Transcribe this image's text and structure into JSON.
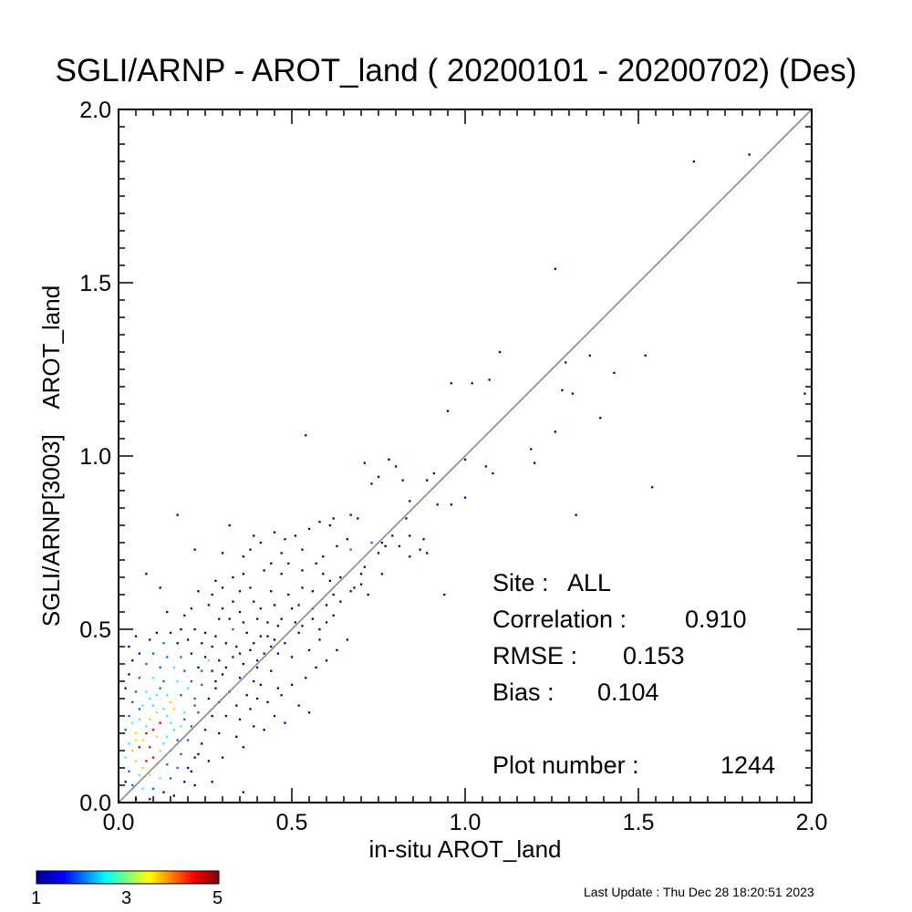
{
  "title": "SGLI/ARNP - AROT_land ( 20200101 - 20200702) (Des)",
  "footer": {
    "last_update": "Last Update : Thu Dec 28 18:20:51 2023"
  },
  "stats": {
    "site_label": "Site :",
    "site_value": "ALL",
    "correlation_label": "Correlation :",
    "correlation_value": "0.910",
    "rmse_label": "RMSE :",
    "rmse_value": "0.153",
    "bias_label": "Bias :",
    "bias_value": "0.104",
    "plot_number_label": "Plot number :",
    "plot_number_value": "1244"
  },
  "colorbar": {
    "min_label": "1",
    "mid_label": "3",
    "max_label": "5",
    "stops": [
      "#00008f",
      "#0000ff",
      "#00ffff",
      "#ffff00",
      "#ff0000",
      "#800000"
    ]
  },
  "chart_data": {
    "type": "heatmap",
    "title": "SGLI/ARNP - AROT_land ( 20200101 - 20200702) (Des)",
    "xlabel": "in-situ AROT_land",
    "ylabel": "SGLI/ARNP[3003]    AROT_land",
    "xlim": [
      0.0,
      2.0
    ],
    "ylim": [
      0.0,
      2.0
    ],
    "x_ticks": [
      "0.0",
      "0.5",
      "1.0",
      "1.5",
      "2.0"
    ],
    "y_ticks": [
      "0.0",
      "0.5",
      "1.0",
      "1.5",
      "2.0"
    ],
    "one_to_one_line": true,
    "grid": false,
    "count_range": [
      1,
      5
    ],
    "bin_size": 0.01,
    "points": [
      [
        1.82,
        1.87,
        1
      ],
      [
        1.66,
        1.85,
        1
      ],
      [
        1.26,
        1.54,
        1
      ],
      [
        1.1,
        1.3,
        1
      ],
      [
        1.36,
        1.29,
        1
      ],
      [
        1.52,
        1.29,
        1
      ],
      [
        1.29,
        1.27,
        1
      ],
      [
        1.43,
        1.24,
        1
      ],
      [
        1.07,
        1.22,
        1
      ],
      [
        0.96,
        1.21,
        1
      ],
      [
        1.02,
        1.21,
        1
      ],
      [
        1.28,
        1.19,
        1
      ],
      [
        1.31,
        1.18,
        1
      ],
      [
        1.98,
        1.18,
        1
      ],
      [
        0.95,
        1.13,
        1
      ],
      [
        1.39,
        1.11,
        1
      ],
      [
        1.26,
        1.07,
        1
      ],
      [
        0.54,
        1.06,
        1
      ],
      [
        1.19,
        1.02,
        1
      ],
      [
        1.0,
        0.99,
        1
      ],
      [
        0.78,
        0.99,
        1
      ],
      [
        0.71,
        0.98,
        1
      ],
      [
        0.8,
        0.97,
        1
      ],
      [
        1.06,
        0.97,
        1
      ],
      [
        1.2,
        0.98,
        1
      ],
      [
        0.91,
        0.95,
        1
      ],
      [
        1.08,
        0.95,
        1
      ],
      [
        0.75,
        0.94,
        1
      ],
      [
        0.82,
        0.93,
        1
      ],
      [
        0.73,
        0.92,
        1
      ],
      [
        0.89,
        0.93,
        1
      ],
      [
        1.54,
        0.91,
        1
      ],
      [
        0.96,
        0.86,
        1
      ],
      [
        1.0,
        0.88,
        1
      ],
      [
        0.84,
        0.87,
        1
      ],
      [
        0.92,
        0.86,
        1
      ],
      [
        0.67,
        0.83,
        1
      ],
      [
        0.62,
        0.82,
        1
      ],
      [
        0.58,
        0.81,
        1
      ],
      [
        1.32,
        0.83,
        1
      ],
      [
        0.17,
        0.83,
        1
      ],
      [
        0.32,
        0.8,
        1
      ],
      [
        0.55,
        0.79,
        1
      ],
      [
        0.61,
        0.8,
        1
      ],
      [
        0.69,
        0.82,
        1
      ],
      [
        0.83,
        0.82,
        1
      ],
      [
        0.45,
        0.78,
        1
      ],
      [
        0.51,
        0.77,
        1
      ],
      [
        0.39,
        0.77,
        1
      ],
      [
        0.41,
        0.75,
        1
      ],
      [
        0.48,
        0.76,
        1
      ],
      [
        0.66,
        0.76,
        1
      ],
      [
        0.76,
        0.75,
        1
      ],
      [
        0.79,
        0.77,
        1
      ],
      [
        0.84,
        0.77,
        1
      ],
      [
        0.88,
        0.76,
        1
      ],
      [
        0.47,
        0.72,
        1
      ],
      [
        0.53,
        0.73,
        1
      ],
      [
        0.44,
        0.69,
        1
      ],
      [
        0.59,
        0.71,
        1
      ],
      [
        0.63,
        0.74,
        1
      ],
      [
        0.67,
        0.73,
        2
      ],
      [
        0.73,
        0.75,
        2
      ],
      [
        0.75,
        0.72,
        1
      ],
      [
        0.77,
        0.74,
        1
      ],
      [
        0.81,
        0.74,
        1
      ],
      [
        0.84,
        0.71,
        1
      ],
      [
        0.87,
        0.73,
        1
      ],
      [
        0.89,
        0.72,
        1
      ],
      [
        0.36,
        0.71,
        1
      ],
      [
        0.38,
        0.73,
        1
      ],
      [
        0.22,
        0.73,
        1
      ],
      [
        0.3,
        0.72,
        1
      ],
      [
        0.49,
        0.69,
        1
      ],
      [
        0.57,
        0.69,
        1
      ],
      [
        0.42,
        0.67,
        1
      ],
      [
        0.47,
        0.66,
        1
      ],
      [
        0.53,
        0.67,
        1
      ],
      [
        0.59,
        0.66,
        1
      ],
      [
        0.61,
        0.64,
        1
      ],
      [
        0.64,
        0.65,
        1
      ],
      [
        0.7,
        0.66,
        1
      ],
      [
        0.36,
        0.66,
        1
      ],
      [
        0.33,
        0.65,
        1
      ],
      [
        0.28,
        0.64,
        1
      ],
      [
        0.08,
        0.66,
        1
      ],
      [
        0.12,
        0.62,
        1
      ],
      [
        0.23,
        0.61,
        1
      ],
      [
        0.27,
        0.6,
        1
      ],
      [
        0.3,
        0.62,
        1
      ],
      [
        0.35,
        0.61,
        1
      ],
      [
        0.38,
        0.62,
        1
      ],
      [
        0.44,
        0.61,
        1
      ],
      [
        0.49,
        0.6,
        1
      ],
      [
        0.53,
        0.62,
        1
      ],
      [
        0.56,
        0.61,
        1
      ],
      [
        0.62,
        0.6,
        1
      ],
      [
        0.67,
        0.61,
        1
      ],
      [
        0.7,
        0.63,
        1
      ],
      [
        0.76,
        0.66,
        1
      ],
      [
        0.72,
        0.6,
        1
      ],
      [
        0.94,
        0.6,
        1
      ],
      [
        0.39,
        0.58,
        1
      ],
      [
        0.41,
        0.56,
        1
      ],
      [
        0.45,
        0.57,
        1
      ],
      [
        0.5,
        0.56,
        1
      ],
      [
        0.52,
        0.57,
        1
      ],
      [
        0.56,
        0.56,
        1
      ],
      [
        0.26,
        0.57,
        1
      ],
      [
        0.3,
        0.56,
        1
      ],
      [
        0.33,
        0.58,
        1
      ],
      [
        0.35,
        0.55,
        1
      ],
      [
        0.21,
        0.56,
        1
      ],
      [
        0.19,
        0.54,
        1
      ],
      [
        0.14,
        0.55,
        1
      ],
      [
        0.29,
        0.53,
        1
      ],
      [
        0.32,
        0.53,
        1
      ],
      [
        0.36,
        0.52,
        1
      ],
      [
        0.4,
        0.53,
        1
      ],
      [
        0.43,
        0.52,
        1
      ],
      [
        0.46,
        0.51,
        1
      ],
      [
        0.51,
        0.52,
        1
      ],
      [
        0.53,
        0.51,
        1
      ],
      [
        0.58,
        0.5,
        1
      ],
      [
        0.6,
        0.52,
        1
      ],
      [
        0.33,
        0.5,
        2
      ],
      [
        0.37,
        0.49,
        1
      ],
      [
        0.41,
        0.48,
        1
      ],
      [
        0.45,
        0.47,
        1
      ],
      [
        0.48,
        0.46,
        1
      ],
      [
        0.25,
        0.49,
        1
      ],
      [
        0.28,
        0.48,
        1
      ],
      [
        0.22,
        0.5,
        1
      ],
      [
        0.18,
        0.5,
        1
      ],
      [
        0.15,
        0.49,
        1
      ],
      [
        0.11,
        0.49,
        1
      ],
      [
        0.05,
        0.48,
        1
      ],
      [
        0.09,
        0.47,
        1
      ],
      [
        0.13,
        0.46,
        2
      ],
      [
        0.17,
        0.46,
        1
      ],
      [
        0.2,
        0.47,
        1
      ],
      [
        0.24,
        0.46,
        1
      ],
      [
        0.27,
        0.45,
        1
      ],
      [
        0.31,
        0.46,
        1
      ],
      [
        0.34,
        0.45,
        1
      ],
      [
        0.38,
        0.44,
        1
      ],
      [
        0.42,
        0.43,
        1
      ],
      [
        0.46,
        0.43,
        1
      ],
      [
        0.5,
        0.42,
        1
      ],
      [
        0.55,
        0.44,
        1
      ],
      [
        0.03,
        0.45,
        1
      ],
      [
        0.06,
        0.43,
        1
      ],
      [
        0.1,
        0.43,
        2
      ],
      [
        0.14,
        0.42,
        2
      ],
      [
        0.18,
        0.42,
        2
      ],
      [
        0.21,
        0.43,
        1
      ],
      [
        0.25,
        0.42,
        1
      ],
      [
        0.29,
        0.41,
        1
      ],
      [
        0.33,
        0.42,
        1
      ],
      [
        0.36,
        0.4,
        1
      ],
      [
        0.4,
        0.39,
        1
      ],
      [
        0.44,
        0.38,
        1
      ],
      [
        0.04,
        0.41,
        1
      ],
      [
        0.08,
        0.4,
        2
      ],
      [
        0.12,
        0.39,
        2
      ],
      [
        0.16,
        0.39,
        3
      ],
      [
        0.19,
        0.38,
        2
      ],
      [
        0.23,
        0.39,
        1
      ],
      [
        0.27,
        0.38,
        1
      ],
      [
        0.3,
        0.37,
        1
      ],
      [
        0.35,
        0.36,
        1
      ],
      [
        0.39,
        0.35,
        1
      ],
      [
        0.41,
        0.34,
        1
      ],
      [
        0.46,
        0.33,
        1
      ],
      [
        0.03,
        0.37,
        1
      ],
      [
        0.06,
        0.36,
        2
      ],
      [
        0.1,
        0.36,
        3
      ],
      [
        0.13,
        0.35,
        2
      ],
      [
        0.17,
        0.35,
        3
      ],
      [
        0.21,
        0.35,
        2
      ],
      [
        0.24,
        0.34,
        2
      ],
      [
        0.28,
        0.33,
        1
      ],
      [
        0.32,
        0.32,
        1
      ],
      [
        0.37,
        0.31,
        1
      ],
      [
        0.4,
        0.3,
        1
      ],
      [
        0.02,
        0.33,
        1
      ],
      [
        0.05,
        0.32,
        2
      ],
      [
        0.08,
        0.32,
        3
      ],
      [
        0.11,
        0.31,
        3
      ],
      [
        0.14,
        0.31,
        3
      ],
      [
        0.18,
        0.31,
        2
      ],
      [
        0.22,
        0.3,
        2
      ],
      [
        0.26,
        0.3,
        1
      ],
      [
        0.29,
        0.29,
        1
      ],
      [
        0.34,
        0.28,
        1
      ],
      [
        0.38,
        0.27,
        1
      ],
      [
        0.04,
        0.29,
        2
      ],
      [
        0.07,
        0.28,
        3
      ],
      [
        0.1,
        0.28,
        3
      ],
      [
        0.13,
        0.27,
        3
      ],
      [
        0.16,
        0.27,
        4
      ],
      [
        0.19,
        0.26,
        3
      ],
      [
        0.23,
        0.26,
        2
      ],
      [
        0.27,
        0.25,
        1
      ],
      [
        0.31,
        0.25,
        1
      ],
      [
        0.35,
        0.24,
        1
      ],
      [
        0.03,
        0.25,
        2
      ],
      [
        0.06,
        0.24,
        3
      ],
      [
        0.09,
        0.24,
        4
      ],
      [
        0.12,
        0.23,
        5
      ],
      [
        0.15,
        0.23,
        3
      ],
      [
        0.18,
        0.22,
        3
      ],
      [
        0.21,
        0.22,
        2
      ],
      [
        0.25,
        0.21,
        1
      ],
      [
        0.29,
        0.2,
        1
      ],
      [
        0.02,
        0.21,
        2
      ],
      [
        0.05,
        0.2,
        4
      ],
      [
        0.08,
        0.2,
        5
      ],
      [
        0.11,
        0.19,
        4
      ],
      [
        0.14,
        0.19,
        3
      ],
      [
        0.17,
        0.18,
        2
      ],
      [
        0.2,
        0.18,
        2
      ],
      [
        0.24,
        0.17,
        1
      ],
      [
        0.03,
        0.17,
        3
      ],
      [
        0.06,
        0.16,
        5
      ],
      [
        0.09,
        0.16,
        5
      ],
      [
        0.12,
        0.15,
        4
      ],
      [
        0.15,
        0.15,
        3
      ],
      [
        0.18,
        0.14,
        2
      ],
      [
        0.22,
        0.13,
        1
      ],
      [
        0.26,
        0.12,
        1
      ],
      [
        0.02,
        0.13,
        3
      ],
      [
        0.05,
        0.12,
        4
      ],
      [
        0.08,
        0.12,
        5
      ],
      [
        0.11,
        0.11,
        4
      ],
      [
        0.14,
        0.11,
        2
      ],
      [
        0.17,
        0.1,
        2
      ],
      [
        0.21,
        0.09,
        1
      ],
      [
        0.03,
        0.09,
        2
      ],
      [
        0.06,
        0.08,
        3
      ],
      [
        0.09,
        0.08,
        4
      ],
      [
        0.12,
        0.07,
        3
      ],
      [
        0.15,
        0.07,
        2
      ],
      [
        0.19,
        0.06,
        1
      ],
      [
        0.04,
        0.05,
        2
      ],
      [
        0.07,
        0.04,
        3
      ],
      [
        0.1,
        0.04,
        2
      ],
      [
        0.13,
        0.03,
        1
      ],
      [
        0.16,
        0.02,
        1
      ],
      [
        0.05,
        0.01,
        1
      ],
      [
        0.09,
        0.01,
        1
      ],
      [
        0.02,
        0.06,
        1
      ],
      [
        0.36,
        0.03,
        1
      ],
      [
        0.37,
        0.0,
        1
      ],
      [
        0.22,
        0.05,
        1
      ],
      [
        0.27,
        0.06,
        1
      ],
      [
        0.2,
        0.1,
        1
      ],
      [
        0.23,
        0.14,
        1
      ],
      [
        0.3,
        0.13,
        1
      ],
      [
        0.34,
        0.19,
        1
      ],
      [
        0.36,
        0.16,
        1
      ],
      [
        0.39,
        0.22,
        1
      ],
      [
        0.42,
        0.21,
        1
      ],
      [
        0.45,
        0.25,
        1
      ],
      [
        0.48,
        0.23,
        1
      ],
      [
        0.52,
        0.28,
        1
      ],
      [
        0.55,
        0.26,
        1
      ],
      [
        0.43,
        0.29,
        1
      ],
      [
        0.47,
        0.31,
        1
      ],
      [
        0.5,
        0.34,
        1
      ],
      [
        0.54,
        0.36,
        1
      ],
      [
        0.57,
        0.39,
        1
      ],
      [
        0.6,
        0.41,
        1
      ],
      [
        0.63,
        0.44,
        1
      ],
      [
        0.66,
        0.47,
        1
      ],
      [
        0.26,
        0.41,
        3
      ],
      [
        0.24,
        0.38,
        2
      ],
      [
        0.2,
        0.33,
        3
      ],
      [
        0.15,
        0.29,
        4
      ],
      [
        0.14,
        0.25,
        3
      ],
      [
        0.1,
        0.21,
        5
      ],
      [
        0.07,
        0.18,
        4
      ],
      [
        0.13,
        0.17,
        3
      ],
      [
        0.04,
        0.15,
        4
      ],
      [
        0.1,
        0.13,
        5
      ],
      [
        0.07,
        0.1,
        4
      ],
      [
        0.11,
        0.26,
        4
      ],
      [
        0.08,
        0.22,
        3
      ],
      [
        0.16,
        0.21,
        3
      ],
      [
        0.19,
        0.24,
        2
      ],
      [
        0.22,
        0.28,
        2
      ],
      [
        0.12,
        0.33,
        2
      ],
      [
        0.09,
        0.3,
        3
      ],
      [
        0.06,
        0.27,
        2
      ],
      [
        0.04,
        0.23,
        3
      ],
      [
        0.05,
        0.18,
        4
      ],
      [
        0.28,
        0.35,
        1
      ],
      [
        0.31,
        0.39,
        1
      ],
      [
        0.35,
        0.43,
        1
      ],
      [
        0.39,
        0.46,
        1
      ],
      [
        0.43,
        0.48,
        1
      ],
      [
        0.47,
        0.53,
        1
      ],
      [
        0.4,
        0.41,
        1
      ],
      [
        0.44,
        0.45,
        1
      ],
      [
        0.52,
        0.49,
        1
      ],
      [
        0.56,
        0.53,
        1
      ],
      [
        0.6,
        0.57,
        1
      ],
      [
        0.64,
        0.58,
        1
      ],
      [
        0.68,
        0.62,
        1
      ],
      [
        0.71,
        0.68,
        1
      ],
      [
        0.62,
        0.54,
        1
      ],
      [
        0.58,
        0.47,
        1
      ]
    ]
  }
}
